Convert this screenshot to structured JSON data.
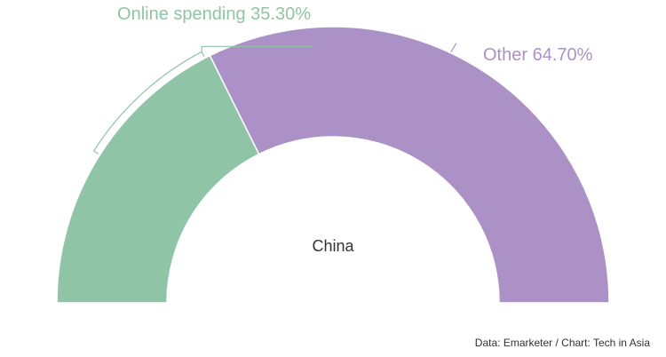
{
  "chart_data": {
    "type": "pie",
    "variant": "semi-donut",
    "center_label": "China",
    "slices": [
      {
        "label": "Online spending",
        "value": 35.3,
        "value_text": "35.30%",
        "color": "#8fc4a7"
      },
      {
        "label": "Other",
        "value": 64.7,
        "value_text": "64.70%",
        "color": "#ab91c5"
      }
    ]
  },
  "source_text": "Data: Emarketer / Chart: Tech in Asia"
}
